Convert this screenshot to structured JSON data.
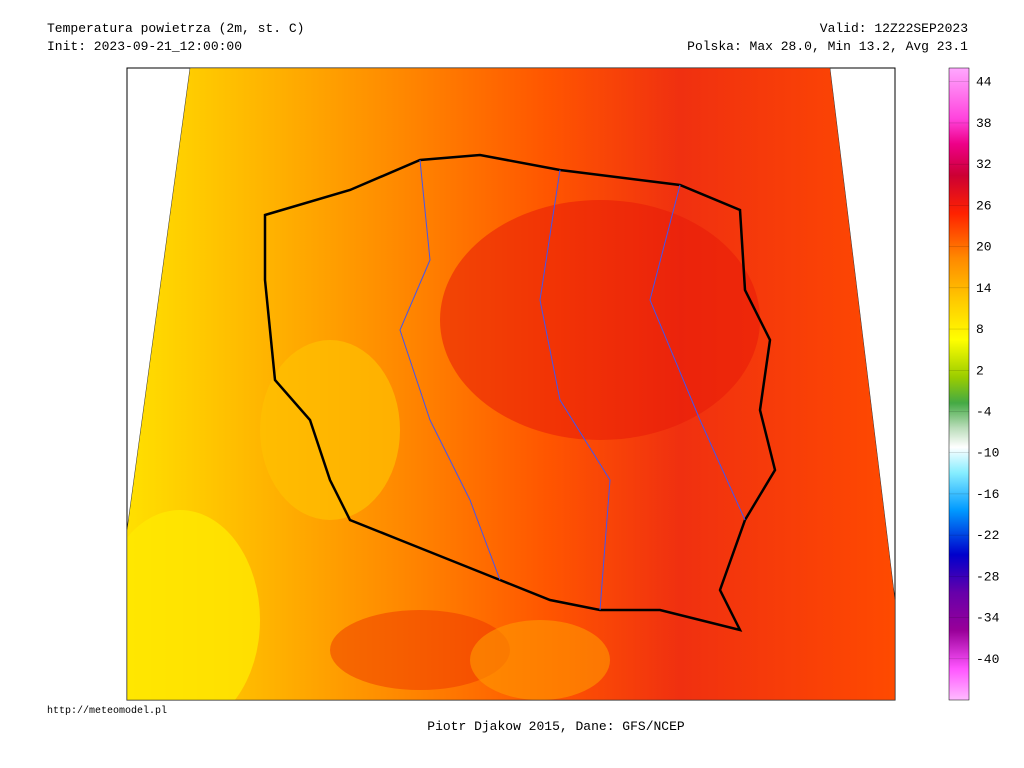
{
  "header": {
    "title": "Temperatura powietrza (2m, st. C)",
    "init": "Init: 2023-09-21_12:00:00",
    "valid": "Valid: 12Z22SEP2023",
    "summary": "Polska: Max 28.0, Min 13.2, Avg 23.1"
  },
  "colorbar": {
    "range": [
      -46,
      46
    ],
    "ticks": [
      44,
      38,
      32,
      26,
      20,
      14,
      8,
      2,
      -4,
      -10,
      -16,
      -22,
      -28,
      -34,
      -40
    ]
  },
  "footer": {
    "url": "http://meteomodel.pl",
    "credit": "Piotr Djakow 2015, Dane: GFS/NCEP"
  }
}
